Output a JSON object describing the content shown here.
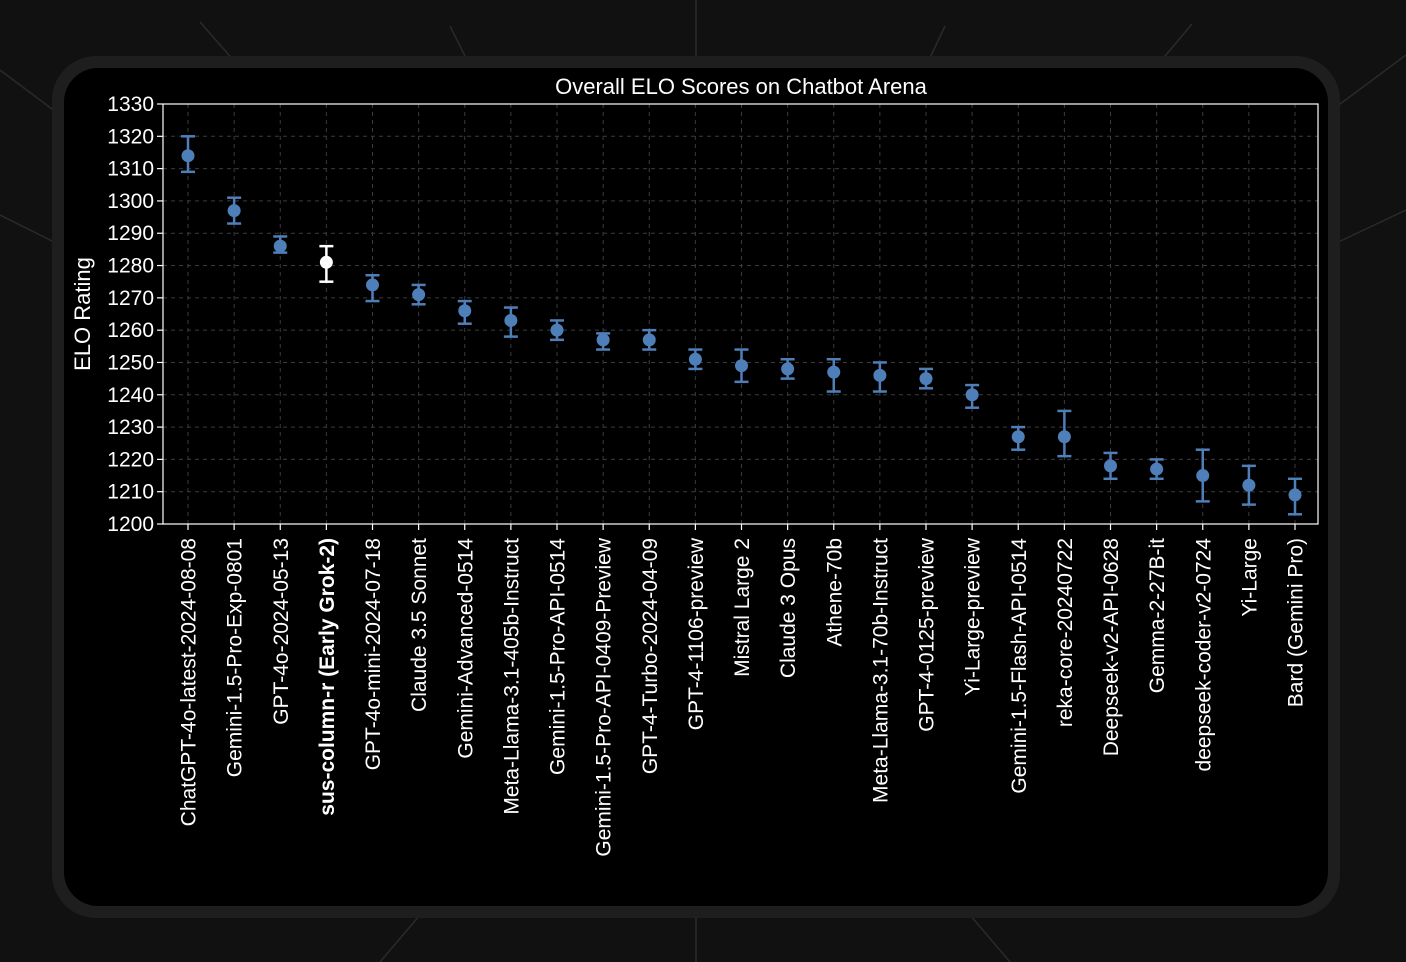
{
  "chart_data": {
    "type": "scatter",
    "title": "Overall ELO Scores on Chatbot Arena",
    "xlabel": "",
    "ylabel": "ELO Rating",
    "ylim": [
      1200,
      1330
    ],
    "yticks": [
      1200,
      1210,
      1220,
      1230,
      1240,
      1250,
      1260,
      1270,
      1280,
      1290,
      1300,
      1310,
      1320,
      1330
    ],
    "grid": true,
    "error_bars": true,
    "point_color": "#4f7fb8",
    "highlight_color": "#ffffff",
    "highlight_label": "sus-column-r (Early Grok-2)",
    "categories": [
      "ChatGPT-4o-latest-2024-08-08",
      "Gemini-1.5-Pro-Exp-0801",
      "GPT-4o-2024-05-13",
      "sus-column-r (Early Grok-2)",
      "GPT-4o-mini-2024-07-18",
      "Claude 3.5 Sonnet",
      "Gemini-Advanced-0514",
      "Meta-Llama-3.1-405b-Instruct",
      "Gemini-1.5-Pro-API-0514",
      "Gemini-1.5-Pro-API-0409-Preview",
      "GPT-4-Turbo-2024-04-09",
      "GPT-4-1106-preview",
      "Mistral Large 2",
      "Claude 3 Opus",
      "Athene-70b",
      "Meta-Llama-3.1-70b-Instruct",
      "GPT-4-0125-preview",
      "Yi-Large-preview",
      "Gemini-1.5-Flash-API-0514",
      "reka-core-20240722",
      "Deepseek-v2-API-0628",
      "Gemma-2-27B-it",
      "deepseek-coder-v2-0724",
      "Yi-Large",
      "Bard (Gemini Pro)"
    ],
    "values": [
      1314,
      1297,
      1286,
      1281,
      1274,
      1271,
      1266,
      1263,
      1260,
      1257,
      1257,
      1251,
      1249,
      1248,
      1247,
      1246,
      1245,
      1240,
      1227,
      1227,
      1218,
      1217,
      1215,
      1212,
      1209
    ],
    "upper": [
      1320,
      1301,
      1289,
      1286,
      1277,
      1274,
      1269,
      1267,
      1263,
      1259,
      1260,
      1254,
      1254,
      1251,
      1251,
      1250,
      1248,
      1243,
      1230,
      1235,
      1222,
      1220,
      1223,
      1218,
      1214
    ],
    "lower": [
      1309,
      1293,
      1284,
      1275,
      1269,
      1268,
      1262,
      1258,
      1257,
      1254,
      1254,
      1248,
      1244,
      1245,
      1241,
      1241,
      1242,
      1236,
      1223,
      1221,
      1214,
      1214,
      1207,
      1206,
      1203
    ]
  }
}
